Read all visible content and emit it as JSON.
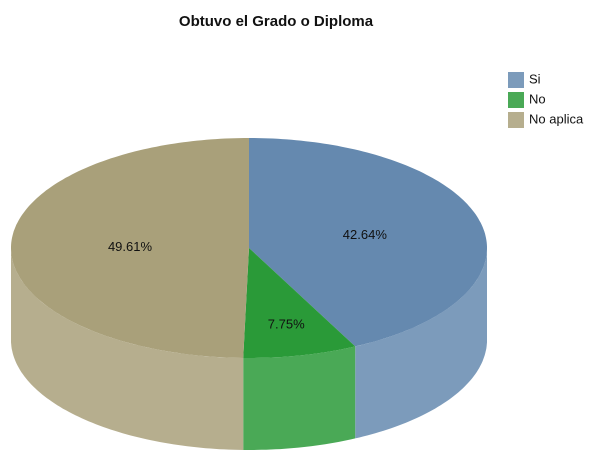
{
  "chart_data": {
    "type": "pie",
    "title": "Obtuvo el Grado o Diploma",
    "categories": [
      "Si",
      "No",
      "No aplica"
    ],
    "values": [
      42.64,
      7.75,
      49.61
    ],
    "value_labels": [
      "42.64%",
      "7.75%",
      "49.61%"
    ],
    "colors": [
      "#6589af",
      "#2a9a38",
      "#a9a07a"
    ]
  }
}
